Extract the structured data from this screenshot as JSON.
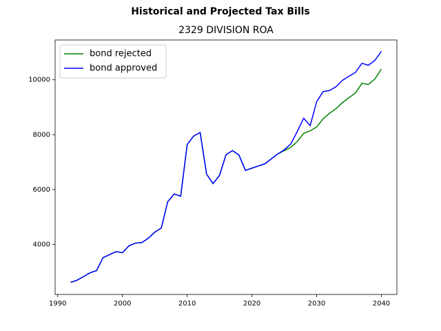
{
  "chart_data": {
    "type": "line",
    "title": "Historical and Projected Tax Bills",
    "subtitle": "2329 DIVISION ROA",
    "x": [
      1992,
      1993,
      1994,
      1995,
      1996,
      1997,
      1998,
      1999,
      2000,
      2001,
      2002,
      2003,
      2004,
      2005,
      2006,
      2007,
      2008,
      2009,
      2010,
      2011,
      2012,
      2013,
      2014,
      2015,
      2016,
      2017,
      2018,
      2019,
      2020,
      2021,
      2022,
      2023,
      2024,
      2025,
      2026,
      2027,
      2028,
      2029,
      2030,
      2031,
      2032,
      2033,
      2034,
      2035,
      2036,
      2037,
      2038,
      2039,
      2040
    ],
    "series": [
      {
        "name": "bond rejected",
        "color": "#008000",
        "values": [
          2620,
          2700,
          2830,
          2970,
          3050,
          3520,
          3630,
          3740,
          3700,
          3950,
          4050,
          4070,
          4230,
          4450,
          4600,
          5560,
          5840,
          5760,
          7640,
          7950,
          8080,
          6560,
          6220,
          6520,
          7270,
          7420,
          7260,
          6700,
          6780,
          6860,
          6940,
          7120,
          7300,
          7420,
          7540,
          7750,
          8050,
          8140,
          8280,
          8580,
          8780,
          8950,
          9170,
          9350,
          9520,
          9870,
          9830,
          10030,
          10390
        ]
      },
      {
        "name": "bond approved",
        "color": "#0000ff",
        "values": [
          2620,
          2700,
          2830,
          2970,
          3050,
          3520,
          3630,
          3740,
          3700,
          3950,
          4050,
          4070,
          4230,
          4450,
          4600,
          5560,
          5840,
          5760,
          7640,
          7950,
          8080,
          6560,
          6220,
          6520,
          7270,
          7420,
          7260,
          6700,
          6780,
          6860,
          6940,
          7120,
          7300,
          7450,
          7660,
          8110,
          8600,
          8330,
          9200,
          9570,
          9610,
          9750,
          9980,
          10130,
          10270,
          10600,
          10530,
          10710,
          11030
        ]
      }
    ],
    "xlim": [
      1989.6,
      2042.4
    ],
    "xticks": [
      1990,
      2000,
      2010,
      2020,
      2030,
      2040
    ],
    "ylim": [
      2180,
      11450
    ],
    "yticks": [
      4000,
      6000,
      8000,
      10000
    ],
    "legend": "upper left"
  }
}
